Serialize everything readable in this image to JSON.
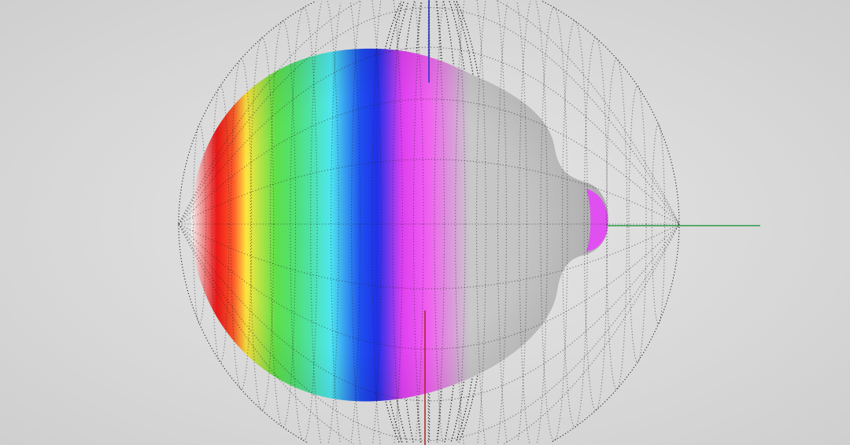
{
  "scene": {
    "background_colors": [
      "#cfcfcf",
      "#e6e6e6"
    ],
    "wireframe_color": "#222222",
    "surface_gradient": [
      "#ffffff",
      "#f01818",
      "#ff5a2a",
      "#ffe640",
      "#5fe04a",
      "#4fe07a",
      "#4ee6f0",
      "#1e50f0",
      "#2030e8",
      "#e040f0",
      "#f060f0",
      "#c8c8c8",
      "#bdbdbd"
    ],
    "axis_colors": {
      "x": "#2a9a4a",
      "y": "#2030c0",
      "z": "#b02020"
    }
  }
}
